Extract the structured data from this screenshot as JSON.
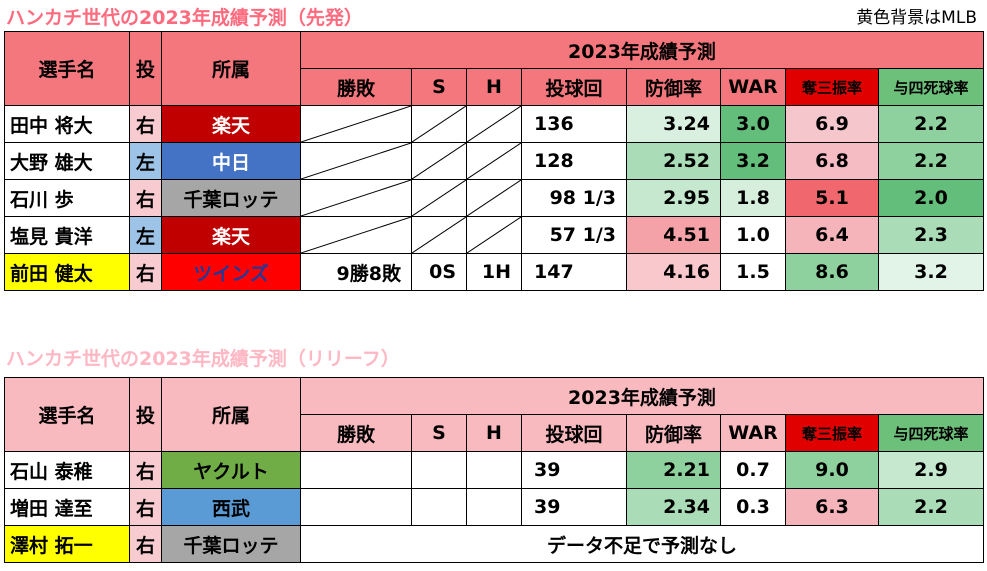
{
  "title_starter": "ハンカチ世代の2023年成績予測（先発）",
  "title_reliever": "ハンカチ世代の2023年成績予測（リリーフ）",
  "note": "黄色背景はMLB",
  "headers": {
    "name": "選手名",
    "hand": "投",
    "team": "所属",
    "projection": "2023年成績予測",
    "wl": "勝敗",
    "s": "S",
    "h": "H",
    "ip": "投球回",
    "era": "防御率",
    "war": "WAR",
    "k": "奪三振率",
    "bb": "与四死球率"
  },
  "colors": {
    "header_starter": "#f4777d",
    "header_reliever": "#f8b9bf",
    "k_header": "#e00000",
    "bb_header": "#6cc07a",
    "mlb_yellow": "#ffff00",
    "hand_right": "#f8cbd0",
    "hand_left": "#9dc3e6"
  },
  "starters": [
    {
      "name": "田中 将大",
      "hand": "右",
      "team": "楽天",
      "wl": "",
      "s": "",
      "h": "",
      "ip": "136",
      "era": "3.24",
      "war": "3.0",
      "k": "6.9",
      "bb": "2.2",
      "mlb": false,
      "slashed": true,
      "team_bg": "#c00000",
      "team_fg": "#ffffff",
      "hand_bg": "#f8cbd0",
      "era_bg": "#d9efe0",
      "war_bg": "#63be7b",
      "k_bg": "#f5c6cc",
      "bb_bg": "#8fd19e"
    },
    {
      "name": "大野 雄大",
      "hand": "左",
      "team": "中日",
      "wl": "",
      "s": "",
      "h": "",
      "ip": "128",
      "era": "2.52",
      "war": "3.2",
      "k": "6.8",
      "bb": "2.2",
      "mlb": false,
      "slashed": true,
      "team_bg": "#4472c4",
      "team_fg": "#ffffff",
      "hand_bg": "#9dc3e6",
      "era_bg": "#a9dcb7",
      "war_bg": "#63be7b",
      "k_bg": "#f5bcc3",
      "bb_bg": "#8fd19e"
    },
    {
      "name": "石川 歩",
      "hand": "右",
      "team": "千葉ロッテ",
      "wl": "",
      "s": "",
      "h": "",
      "ip": "98 1/3",
      "era": "2.95",
      "war": "1.8",
      "k": "5.1",
      "bb": "2.0",
      "mlb": false,
      "slashed": true,
      "team_bg": "#a6a6a6",
      "team_fg": "#000000",
      "hand_bg": "#f8cbd0",
      "era_bg": "#c6e8cf",
      "war_bg": "#d6eedc",
      "k_bg": "#f0686e",
      "bb_bg": "#63be7b"
    },
    {
      "name": "塩見 貴洋",
      "hand": "左",
      "team": "楽天",
      "wl": "",
      "s": "",
      "h": "",
      "ip": "57 1/3",
      "era": "4.51",
      "war": "1.0",
      "k": "6.4",
      "bb": "2.3",
      "mlb": false,
      "slashed": true,
      "team_bg": "#c00000",
      "team_fg": "#ffffff",
      "hand_bg": "#9dc3e6",
      "era_bg": "#f5a1a8",
      "war_bg": "#ffffff",
      "k_bg": "#f5b3ba",
      "bb_bg": "#a9dcb7"
    },
    {
      "name": "前田 健太",
      "hand": "右",
      "team": "ツインズ",
      "wl": "9勝8敗",
      "s": "0S",
      "h": "1H",
      "ip": "147",
      "era": "4.16",
      "war": "1.5",
      "k": "8.6",
      "bb": "3.2",
      "mlb": true,
      "slashed": false,
      "team_bg": "#ff0000",
      "team_fg": "#1f3a9a",
      "hand_bg": "#f8cbd0",
      "era_bg": "#f8c8cd",
      "war_bg": "#ffffff",
      "k_bg": "#8fd19e",
      "bb_bg": "#e2f4e7"
    }
  ],
  "relievers": [
    {
      "name": "石山 泰稚",
      "hand": "右",
      "team": "ヤクルト",
      "ip": "39",
      "era": "2.21",
      "war": "0.7",
      "k": "9.0",
      "bb": "2.9",
      "mlb": false,
      "team_bg": "#70ad47",
      "team_fg": "#000000",
      "hand_bg": "#f8cbd0",
      "era_bg": "#8fd19e",
      "war_bg": "#ffffff",
      "k_bg": "#8fd19e",
      "bb_bg": "#c6e8cf"
    },
    {
      "name": "増田 達至",
      "hand": "右",
      "team": "西武",
      "ip": "39",
      "era": "2.34",
      "war": "0.3",
      "k": "6.3",
      "bb": "2.2",
      "mlb": false,
      "team_bg": "#5b9bd5",
      "team_fg": "#000000",
      "hand_bg": "#f8cbd0",
      "era_bg": "#a9dcb7",
      "war_bg": "#ffffff",
      "k_bg": "#f5b3ba",
      "bb_bg": "#a9dcb7"
    },
    {
      "name": "澤村 拓一",
      "hand": "右",
      "team": "千葉ロッテ",
      "mlb": true,
      "no_data": "データ不足で予測なし",
      "team_bg": "#a6a6a6",
      "team_fg": "#000000",
      "hand_bg": "#f8cbd0"
    }
  ]
}
